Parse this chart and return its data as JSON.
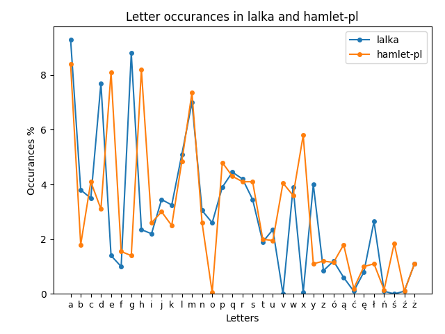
{
  "title": "Letter occurances in lalka and hamlet-pl",
  "xlabel": "Letters",
  "ylabel": "Occurances %",
  "letters": [
    "a",
    "b",
    "c",
    "d",
    "e",
    "f",
    "g",
    "h",
    "i",
    "j",
    "k",
    "l",
    "m",
    "n",
    "o",
    "p",
    "q",
    "r",
    "s",
    "t",
    "u",
    "v",
    "w",
    "x",
    "y",
    "z",
    "ó",
    "ą",
    "ć",
    "ę",
    "ł",
    "ń",
    "ś",
    "ź",
    "ż"
  ],
  "lalka": [
    9.3,
    3.8,
    3.5,
    7.7,
    1.4,
    1.0,
    8.8,
    2.35,
    2.2,
    3.45,
    3.25,
    5.1,
    7.0,
    3.05,
    2.6,
    3.9,
    4.45,
    4.2,
    3.45,
    1.9,
    2.35,
    0.0,
    3.9,
    0.05,
    4.0,
    0.85,
    1.2,
    0.6,
    0.1,
    0.8,
    2.65,
    0.1,
    0.0,
    0.1,
    1.1
  ],
  "hamlet_pl": [
    8.4,
    1.8,
    4.1,
    3.1,
    8.1,
    1.55,
    1.4,
    8.2,
    2.6,
    3.0,
    2.5,
    4.85,
    7.35,
    2.6,
    0.05,
    4.8,
    4.3,
    4.1,
    4.1,
    2.0,
    1.95,
    4.05,
    3.6,
    5.8,
    1.1,
    1.2,
    1.15,
    1.8,
    0.2,
    1.0,
    1.1,
    0.15,
    1.85,
    0.1,
    1.1
  ],
  "lalka_color": "#1f77b4",
  "hamlet_color": "#ff7f0e",
  "figsize": [
    6.4,
    4.8
  ],
  "dpi": 100
}
